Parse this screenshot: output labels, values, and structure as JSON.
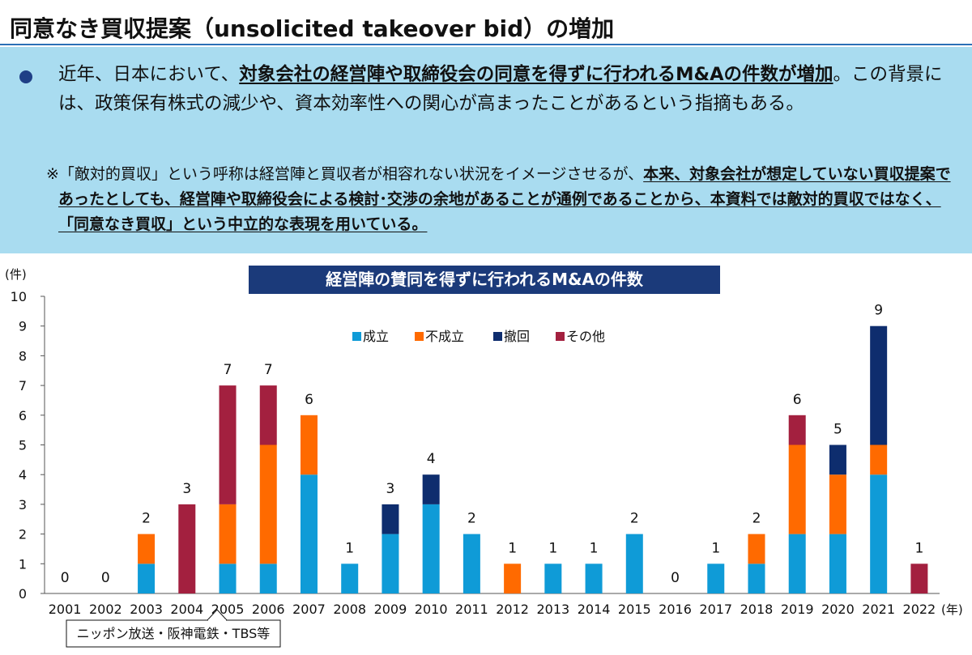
{
  "header": {
    "title": "同意なき買収提案（unsolicited takeover bid）の増加"
  },
  "info": {
    "bullet_pre": "近年、日本において、",
    "bullet_bold": "対象会社の経営陣や取締役会の同意を得ずに行われるM&Aの件数が増加",
    "bullet_post": "。この背景には、政策保有株式の減少や、資本効率性への関心が高まったことがあるという指摘もある。",
    "note_pre": "※「敵対的買収」という呼称は経営陣と買収者が相容れない状況をイメージさせるが、",
    "note_bold": "本来、対象会社が想定していない買収提案であったとしても、経営陣や取締役会による検討･交渉の余地があることが通例であることから、本資料では敵対的買収ではなく、「同意なき買収」という中立的な表現を用いている",
    "note_post": "。"
  },
  "chart_data": {
    "type": "bar",
    "stacked": true,
    "title": "経営陣の賛同を得ずに行われるM&Aの件数",
    "ylabel": "(件)",
    "xlabel": "(年)",
    "ylim": [
      0,
      10
    ],
    "yticks": [
      "0",
      "1",
      "2",
      "3",
      "4",
      "5",
      "6",
      "7",
      "8",
      "9",
      "10"
    ],
    "categories": [
      "2001",
      "2002",
      "2003",
      "2004",
      "2005",
      "2006",
      "2007",
      "2008",
      "2009",
      "2010",
      "2011",
      "2012",
      "2013",
      "2014",
      "2015",
      "2016",
      "2017",
      "2018",
      "2019",
      "2020",
      "2021",
      "2022"
    ],
    "series": [
      {
        "name": "成立",
        "color": "#0f9bd7",
        "values": [
          0,
          0,
          1,
          0,
          1,
          1,
          4,
          1,
          2,
          3,
          2,
          0,
          1,
          1,
          2,
          0,
          1,
          1,
          2,
          2,
          4,
          0
        ]
      },
      {
        "name": "不成立",
        "color": "#ff6a00",
        "values": [
          0,
          0,
          1,
          0,
          2,
          4,
          2,
          0,
          0,
          0,
          0,
          1,
          0,
          0,
          0,
          0,
          0,
          1,
          3,
          2,
          1,
          0
        ]
      },
      {
        "name": "撤回",
        "color": "#0e2d6e",
        "values": [
          0,
          0,
          0,
          0,
          0,
          0,
          0,
          0,
          1,
          1,
          0,
          0,
          0,
          0,
          0,
          0,
          0,
          0,
          0,
          1,
          4,
          0
        ]
      },
      {
        "name": "その他",
        "color": "#a3203f",
        "values": [
          0,
          0,
          0,
          3,
          4,
          2,
          0,
          0,
          0,
          0,
          0,
          0,
          0,
          0,
          0,
          0,
          0,
          0,
          1,
          0,
          0,
          1
        ]
      }
    ],
    "totals": [
      "0",
      "0",
      "2",
      "3",
      "7",
      "7",
      "6",
      "1",
      "3",
      "4",
      "2",
      "1",
      "1",
      "1",
      "2",
      "0",
      "1",
      "2",
      "6",
      "5",
      "9",
      "1"
    ],
    "legend_position": "top-center",
    "annotation": {
      "text": "ニッポン放送・阪神電鉄・TBS等",
      "target": "2005"
    }
  },
  "colors": {
    "title_bar": "#1b3a7a",
    "info_background": "#a9dcf0",
    "axis": "#555555"
  }
}
